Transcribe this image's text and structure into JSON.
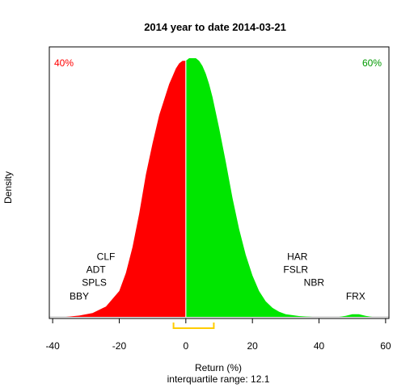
{
  "chart_data": {
    "type": "area",
    "title": "2014  year to date 2014-03-21",
    "xlabel": "Return (%)",
    "ylabel": "Density",
    "subtitle": "interquartile range: 12.1",
    "xlim": [
      -41,
      61
    ],
    "x_ticks": [
      -40,
      -20,
      0,
      20,
      40,
      60
    ],
    "grid": false,
    "split_at": 0,
    "negative_share_label": "40%",
    "positive_share_label": "60%",
    "colors": {
      "negative": "#ff0000",
      "positive": "#00e600",
      "iqr_bracket": "#ffcc00",
      "divider": "#ffffff",
      "baseline": "#bfbfbf"
    },
    "iqr": [
      -3.7,
      8.4
    ],
    "density_curve": {
      "x": [
        -36,
        -32,
        -28,
        -24,
        -20,
        -18,
        -16,
        -14,
        -12,
        -10,
        -8,
        -6,
        -5,
        -4,
        -3,
        -2,
        -1,
        0,
        1,
        2,
        3,
        4,
        5,
        6,
        7,
        8,
        10,
        12,
        14,
        16,
        18,
        20,
        22,
        24,
        26,
        28,
        30,
        34,
        38,
        42,
        46,
        48,
        50,
        52,
        54,
        56
      ],
      "y": [
        0.0,
        0.005,
        0.015,
        0.04,
        0.1,
        0.17,
        0.27,
        0.4,
        0.55,
        0.67,
        0.78,
        0.86,
        0.9,
        0.93,
        0.96,
        0.98,
        0.99,
        0.99,
        1.0,
        1.0,
        1.0,
        0.99,
        0.97,
        0.94,
        0.9,
        0.85,
        0.73,
        0.6,
        0.46,
        0.34,
        0.24,
        0.16,
        0.1,
        0.06,
        0.035,
        0.02,
        0.01,
        0.003,
        0.0,
        0.0,
        0.0,
        0.004,
        0.01,
        0.01,
        0.004,
        0.0
      ]
    },
    "annotations": [
      {
        "label": "CLF",
        "x": -24,
        "y": 0.233
      },
      {
        "label": "ADT",
        "x": -27,
        "y": 0.183
      },
      {
        "label": "SPLS",
        "x": -27.5,
        "y": 0.133
      },
      {
        "label": "BBY",
        "x": -32,
        "y": 0.08
      },
      {
        "label": "HAR",
        "x": 33.5,
        "y": 0.233
      },
      {
        "label": "FSLR",
        "x": 33,
        "y": 0.183
      },
      {
        "label": "NBR",
        "x": 38.5,
        "y": 0.133
      },
      {
        "label": "FRX",
        "x": 51,
        "y": 0.08
      }
    ]
  }
}
